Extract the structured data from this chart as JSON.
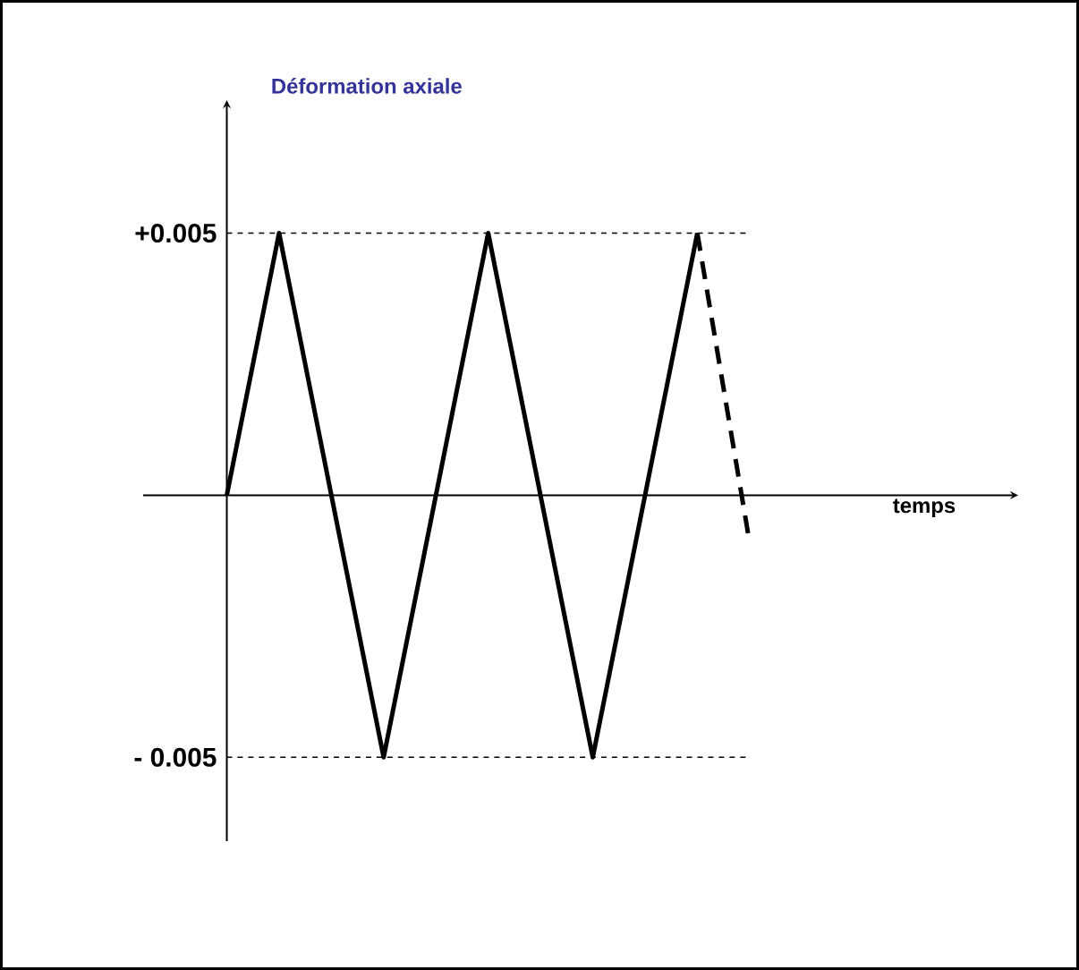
{
  "chart_data": {
    "type": "line",
    "annotations": [
      "temps"
    ],
    "ylabel": "Déformation axiale",
    "categories": [
      null,
      null,
      null,
      null,
      null,
      null,
      null,
      null,
      null,
      null,
      null
    ],
    "ylim": [
      -0.0066,
      0.0074
    ],
    "yticks": [
      {
        "value": 0.005,
        "label": "+0.005"
      },
      {
        "value": -0.005,
        "label": "- 0.005"
      }
    ],
    "series": [
      {
        "color": "#000000",
        "line_style": "solid",
        "values": [
          0,
          0.005,
          0,
          -0.005,
          0,
          0.005,
          0,
          -0.005,
          0,
          0.005,
          null
        ]
      },
      {
        "color": "#000000",
        "line_style": "dashed",
        "values": [
          null,
          null,
          null,
          null,
          null,
          null,
          null,
          null,
          null,
          0.005,
          -0.0009
        ]
      }
    ],
    "ref_lines": [
      {
        "axis": "y",
        "value": 0.005,
        "line_style": "dashed",
        "color": "#000000"
      },
      {
        "axis": "y",
        "value": -0.005,
        "line_style": "dashed",
        "color": "#000000"
      }
    ],
    "marker": "none",
    "grid": false,
    "legend": false
  }
}
